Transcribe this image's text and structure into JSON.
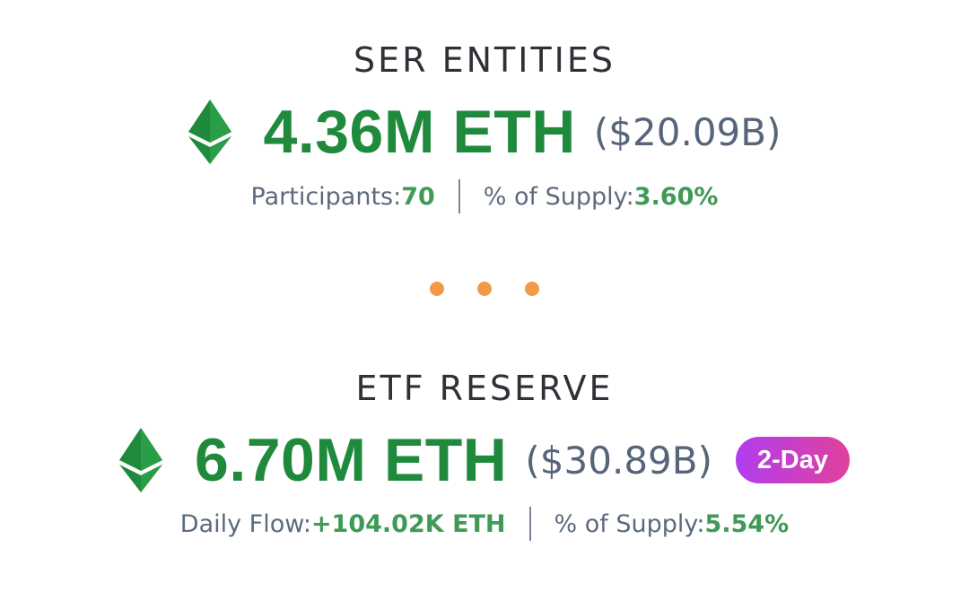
{
  "entities": {
    "title": "SER ENTITIES",
    "amount": "4.36M ETH",
    "usd": "($20.09B)",
    "participants_label": "Participants: ",
    "participants_value": "70",
    "supply_label": "% of Supply: ",
    "supply_value": "3.60%"
  },
  "reserve": {
    "title": "ETF RESERVE",
    "amount": "6.70M ETH",
    "usd": "($30.89B)",
    "badge": "2-Day",
    "flow_label": "Daily Flow: ",
    "flow_value": "+104.02K ETH",
    "supply_label": "% of Supply: ",
    "supply_value": "5.54%"
  },
  "icons": {
    "eth": "ethereum-icon",
    "dots": "ellipsis-dots"
  },
  "colors": {
    "eth_green": "#1f8a3c",
    "value_green": "#3f9a57",
    "dot_orange": "#f29a48",
    "badge_start": "#b13df0",
    "badge_end": "#e0419b"
  }
}
